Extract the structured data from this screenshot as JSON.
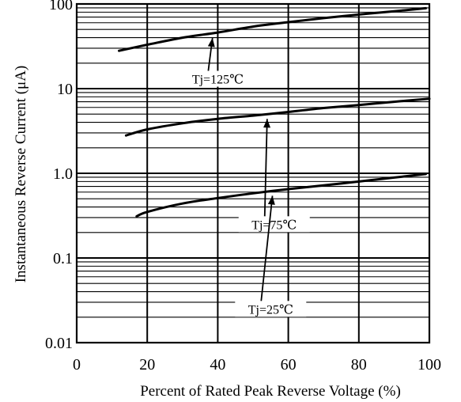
{
  "chart_data": {
    "type": "line",
    "title": "",
    "xlabel": "Percent of Rated Peak Reverse Voltage (%)",
    "ylabel": "Instantaneous Reverse Current (μA)",
    "xlim": [
      0,
      100
    ],
    "ylim": [
      0.01,
      100
    ],
    "yscale": "log",
    "grid": true,
    "x_ticks": [
      "0",
      "20",
      "40",
      "60",
      "80",
      "100"
    ],
    "y_ticks": [
      "0.01",
      "0.1",
      "1.0",
      "10",
      "100"
    ],
    "series": [
      {
        "name": "Tj=125℃",
        "x": [
          12,
          20,
          30,
          40,
          50,
          60,
          70,
          80,
          90,
          99
        ],
        "y": [
          28,
          33,
          40,
          46,
          54,
          61,
          68,
          75,
          82,
          89
        ]
      },
      {
        "name": "Tj=75℃",
        "x": [
          14,
          20,
          30,
          40,
          50,
          60,
          70,
          80,
          90,
          100
        ],
        "y": [
          2.8,
          3.3,
          3.9,
          4.4,
          4.8,
          5.3,
          5.9,
          6.4,
          7.0,
          7.6
        ]
      },
      {
        "name": "Tj=25℃",
        "x": [
          17,
          20,
          30,
          40,
          50,
          60,
          70,
          80,
          90,
          99
        ],
        "y": [
          0.31,
          0.35,
          0.44,
          0.51,
          0.58,
          0.65,
          0.72,
          0.8,
          0.89,
          0.98
        ]
      }
    ]
  }
}
